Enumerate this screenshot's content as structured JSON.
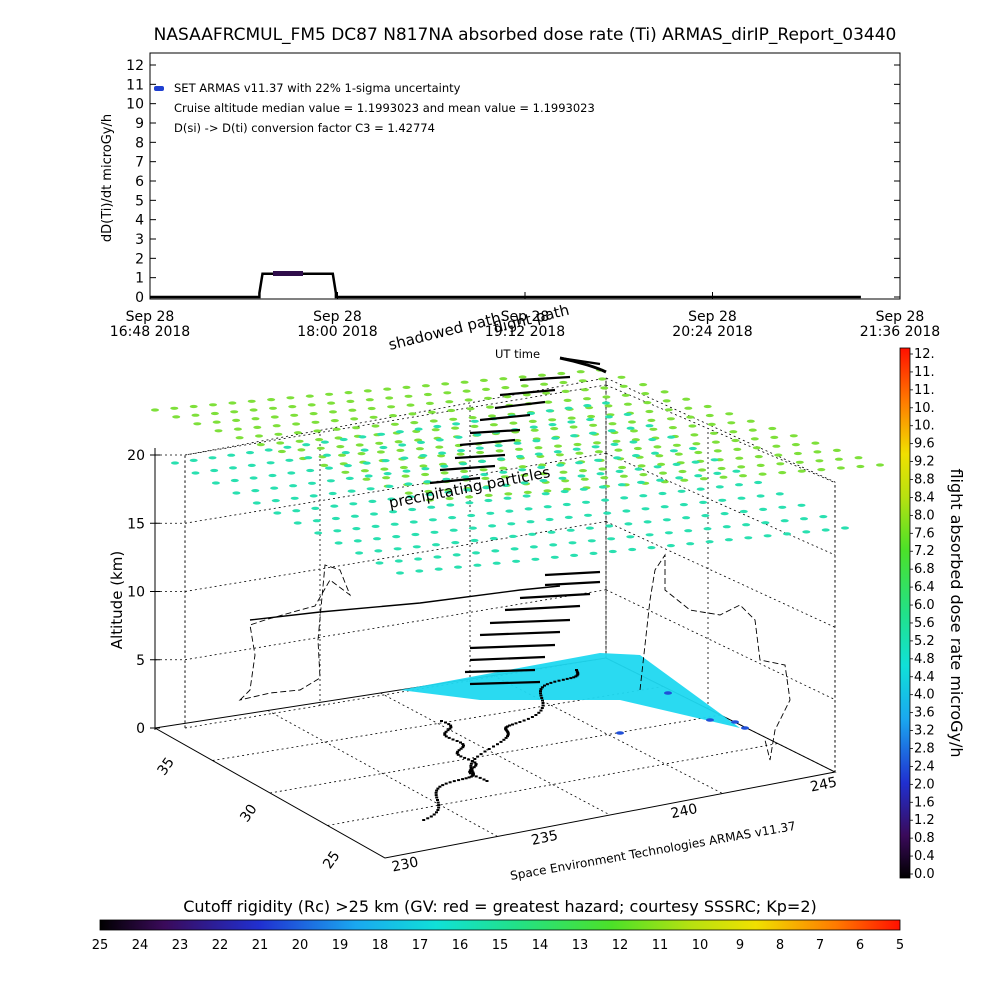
{
  "chart_data": [
    {
      "type": "line",
      "title": "NASAAFRCMUL_FM5 DC87 N817NA absorbed dose rate (Ti) ARMAS_dirIP_Report_03440",
      "ylabel": "dD(Ti)/dt microGy/h",
      "ylim": [
        0,
        12
      ],
      "y_ticks": [
        "0",
        "1",
        "2",
        "3",
        "4",
        "5",
        "6",
        "7",
        "8",
        "9",
        "10",
        "11",
        "12"
      ],
      "x_ticks": [
        {
          "date": "Sep 28",
          "time": "16:48 2018"
        },
        {
          "date": "Sep 28",
          "time": "18:00 2018"
        },
        {
          "date": "Sep 28",
          "time": "19:12 2018"
        },
        {
          "date": "Sep 28",
          "time": "20:24 2018"
        },
        {
          "date": "Sep 28",
          "time": "21:36 2018"
        }
      ],
      "xlim_hours": [
        16.8,
        21.6
      ],
      "annotations": [
        "SET ARMAS v11.37 with 22% 1-sigma uncertainty",
        "Cruise altitude median value = 1.1993023 and mean value = 1.1993023",
        "D(si) -> D(ti) conversion factor C3 = 1.42774"
      ],
      "series": [
        {
          "color": "#2f0d4a",
          "x_hours": [
            16.8,
            17.5,
            17.5,
            17.52,
            17.97,
            17.99,
            17.99,
            21.35
          ],
          "values": [
            0,
            0,
            0.2,
            1.2,
            1.2,
            0.2,
            0,
            0
          ]
        }
      ],
      "legend_color": "#1f3fd0"
    },
    {
      "type": "scatter",
      "labels": {
        "flight_path": "flight path",
        "shadowed": "shadowed path",
        "ut_time": "UT time",
        "precip": "precipitating particles",
        "zlabel": "Altitude (km)",
        "credit": "Space Environment Technologies ARMAS v11.37"
      },
      "z_ticks": [
        "0",
        "5",
        "10",
        "15",
        "20"
      ],
      "lat_ticks": [
        "35",
        "30",
        "25"
      ],
      "lon_ticks": [
        "230",
        "235",
        "240",
        "245"
      ],
      "colorbar_title": "flight absorbed dose rate microGy/h",
      "colorbar_ticks": [
        "0.0",
        "0.4",
        "0.8",
        "1.2",
        "1.6",
        "2.0",
        "2.4",
        "2.8",
        "3.2",
        "3.6",
        "4.0",
        "4.4",
        "4.8",
        "5.2",
        "5.6",
        "6.0",
        "6.4",
        "6.8",
        "7.2",
        "7.6",
        "8.0",
        "8.4",
        "8.8",
        "9.2",
        "9.6",
        "10.",
        "10.",
        "11.",
        "11.",
        "12."
      ],
      "colorbar_range": [
        0,
        12
      ],
      "cutoff_title": "Cutoff rigidity (Rc) >25 km (GV: red = greatest hazard; courtesy SSSRC; Kp=2)",
      "cutoff_ticks": [
        "25",
        "24",
        "23",
        "22",
        "21",
        "20",
        "19",
        "18",
        "17",
        "16",
        "15",
        "14",
        "13",
        "12",
        "11",
        "10",
        "9",
        "8",
        "7",
        "6",
        "5"
      ],
      "layer_colors": {
        "front": "#29e0b0",
        "back": "#7ee03a",
        "surface": "#1fd8f0"
      }
    }
  ]
}
